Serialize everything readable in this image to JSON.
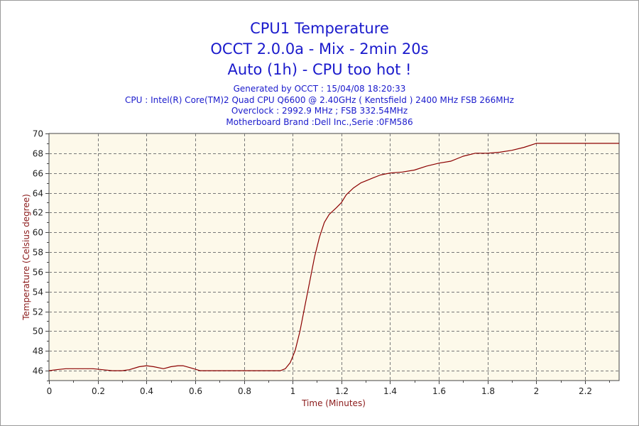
{
  "chart_data": {
    "type": "line",
    "title": "CPU1 Temperature",
    "subtitle_lines": [
      "OCCT 2.0.0a - Mix - 2min 20s",
      "Auto (1h) - CPU too hot !"
    ],
    "info_lines": [
      "Generated by OCCT : 15/04/08 18:20:33",
      "CPU : Intel(R) Core(TM)2 Quad CPU Q6600 @ 2.40GHz ( Kentsfield ) 2400 MHz FSB 266MHz",
      "Overclock : 2992.9 MHz ; FSB 332.54MHz",
      "Motherboard Brand :Dell Inc.,Serie :0FM586"
    ],
    "xlabel": "Time (Minutes)",
    "ylabel": "Temperature (Celsius degree)",
    "xlim": [
      0,
      2.34
    ],
    "ylim": [
      45,
      70
    ],
    "xticks": [
      0,
      0.2,
      0.4,
      0.6,
      0.8,
      1,
      1.2,
      1.4,
      1.6,
      1.8,
      2,
      2.2
    ],
    "xtick_labels": [
      "0",
      "0.2",
      "0.4",
      "0.6",
      "0.8",
      "1",
      "1.2",
      "1.4",
      "1.6",
      "1.8",
      "2",
      "2.2"
    ],
    "yticks": [
      46,
      48,
      50,
      52,
      54,
      56,
      58,
      60,
      62,
      64,
      66,
      68,
      70
    ],
    "ytick_labels": [
      "46",
      "48",
      "50",
      "52",
      "54",
      "56",
      "58",
      "60",
      "62",
      "64",
      "66",
      "68",
      "70"
    ],
    "grid": true,
    "legend": "none",
    "series": [
      {
        "color": "#8b0000",
        "x": [
          0,
          0.03,
          0.07,
          0.12,
          0.18,
          0.22,
          0.26,
          0.3,
          0.33,
          0.37,
          0.4,
          0.43,
          0.47,
          0.5,
          0.53,
          0.55,
          0.58,
          0.62,
          0.66,
          0.7,
          0.8,
          0.9,
          0.95,
          0.97,
          0.99,
          1.01,
          1.03,
          1.05,
          1.07,
          1.09,
          1.11,
          1.13,
          1.15,
          1.18,
          1.2,
          1.22,
          1.25,
          1.28,
          1.3,
          1.33,
          1.36,
          1.4,
          1.45,
          1.5,
          1.55,
          1.6,
          1.65,
          1.7,
          1.75,
          1.8,
          1.85,
          1.9,
          1.95,
          2.0,
          2.05,
          2.1,
          2.2,
          2.34
        ],
        "y": [
          46.0,
          46.1,
          46.2,
          46.2,
          46.2,
          46.1,
          46.0,
          46.0,
          46.1,
          46.4,
          46.5,
          46.4,
          46.2,
          46.4,
          46.5,
          46.5,
          46.3,
          46.0,
          46.0,
          46.0,
          46.0,
          46.0,
          46.0,
          46.2,
          46.8,
          48.0,
          50.0,
          52.5,
          55.0,
          57.5,
          59.5,
          61.0,
          61.8,
          62.5,
          63.0,
          63.8,
          64.5,
          65.0,
          65.2,
          65.5,
          65.8,
          66.0,
          66.1,
          66.3,
          66.7,
          67.0,
          67.2,
          67.7,
          68.0,
          68.0,
          68.1,
          68.3,
          68.6,
          69.0,
          69.0,
          69.0,
          69.0,
          69.0
        ]
      }
    ]
  }
}
